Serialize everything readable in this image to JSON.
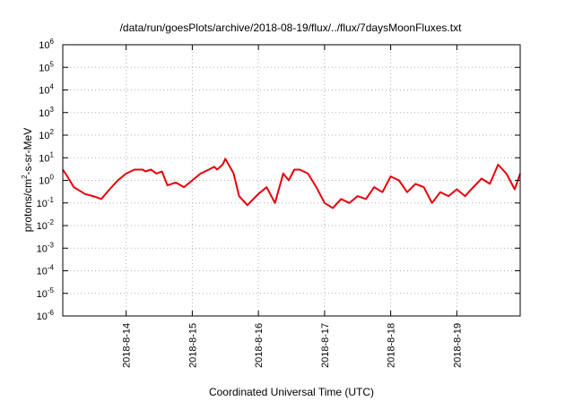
{
  "chart_data": {
    "type": "line",
    "title": "/data/run/goesPlots/archive/2018-08-19/flux/../flux/7daysMoonFluxes.txt",
    "xlabel": "Coordinated Universal Time (UTC)",
    "ylabel_base": "protons/cm",
    "ylabel_sup": "2",
    "ylabel_rest": "-s-sr-MeV",
    "y_scale": "log",
    "ylim": [
      1e-06,
      1000000.0
    ],
    "y_ticks": [
      {
        "base": "10",
        "exp": "-6"
      },
      {
        "base": "10",
        "exp": "-5"
      },
      {
        "base": "10",
        "exp": "-4"
      },
      {
        "base": "10",
        "exp": "-3"
      },
      {
        "base": "10",
        "exp": "-2"
      },
      {
        "base": "10",
        "exp": "-1"
      },
      {
        "base": "10",
        "exp": "0"
      },
      {
        "base": "10",
        "exp": "1"
      },
      {
        "base": "10",
        "exp": "2"
      },
      {
        "base": "10",
        "exp": "3"
      },
      {
        "base": "10",
        "exp": "4"
      },
      {
        "base": "10",
        "exp": "5"
      },
      {
        "base": "10",
        "exp": "6"
      }
    ],
    "xlim": [
      "2018-08-13 01:00",
      "2018-08-19 23:00"
    ],
    "x_ticks": [
      "2018-8-14",
      "2018-8-15",
      "2018-8-16",
      "2018-8-17",
      "2018-8-18",
      "2018-8-19"
    ],
    "grid": true,
    "series": [
      {
        "color": "#e8000b",
        "x": [
          "2018-08-13 01:00",
          "2018-08-13 02:00",
          "2018-08-13 05:00",
          "2018-08-13 08:00",
          "2018-08-13 09:00",
          "2018-08-13 12:00",
          "2018-08-13 15:00",
          "2018-08-13 18:00",
          "2018-08-13 21:00",
          "2018-08-14 00:00",
          "2018-08-14 03:00",
          "2018-08-14 06:00",
          "2018-08-14 07:00",
          "2018-08-14 09:00",
          "2018-08-14 11:00",
          "2018-08-14 13:00",
          "2018-08-14 15:00",
          "2018-08-14 18:00",
          "2018-08-14 21:00",
          "2018-08-15 00:00",
          "2018-08-15 03:00",
          "2018-08-15 06:00",
          "2018-08-15 08:00",
          "2018-08-15 09:00",
          "2018-08-15 11:00",
          "2018-08-15 12:00",
          "2018-08-15 15:00",
          "2018-08-15 17:00",
          "2018-08-15 20:00",
          "2018-08-16 00:00",
          "2018-08-16 03:00",
          "2018-08-16 06:00",
          "2018-08-16 09:00",
          "2018-08-16 11:00",
          "2018-08-16 13:00",
          "2018-08-16 15:00",
          "2018-08-16 18:00",
          "2018-08-16 21:00",
          "2018-08-17 00:00",
          "2018-08-17 03:00",
          "2018-08-17 06:00",
          "2018-08-17 09:00",
          "2018-08-17 12:00",
          "2018-08-17 15:00",
          "2018-08-17 18:00",
          "2018-08-17 21:00",
          "2018-08-18 00:00",
          "2018-08-18 03:00",
          "2018-08-18 06:00",
          "2018-08-18 09:00",
          "2018-08-18 12:00",
          "2018-08-18 15:00",
          "2018-08-18 18:00",
          "2018-08-18 21:00",
          "2018-08-19 00:00",
          "2018-08-19 03:00",
          "2018-08-19 06:00",
          "2018-08-19 09:00",
          "2018-08-19 12:00",
          "2018-08-19 15:00",
          "2018-08-19 18:00",
          "2018-08-19 21:00",
          "2018-08-19 23:00"
        ],
        "values": [
          3,
          2,
          0.5,
          0.3,
          0.25,
          0.2,
          0.15,
          0.4,
          1,
          2,
          3,
          3,
          2.5,
          3,
          2,
          2.5,
          0.6,
          0.8,
          0.5,
          1,
          2,
          3,
          4,
          3,
          5,
          9,
          2,
          0.2,
          0.08,
          0.25,
          0.5,
          0.1,
          2,
          1,
          3,
          3,
          2,
          0.5,
          0.1,
          0.06,
          0.15,
          0.1,
          0.2,
          0.15,
          0.5,
          0.3,
          1.5,
          1,
          0.3,
          0.7,
          0.5,
          0.1,
          0.3,
          0.2,
          0.4,
          0.2,
          0.5,
          1.2,
          0.7,
          5,
          2,
          0.4,
          2
        ]
      }
    ]
  }
}
